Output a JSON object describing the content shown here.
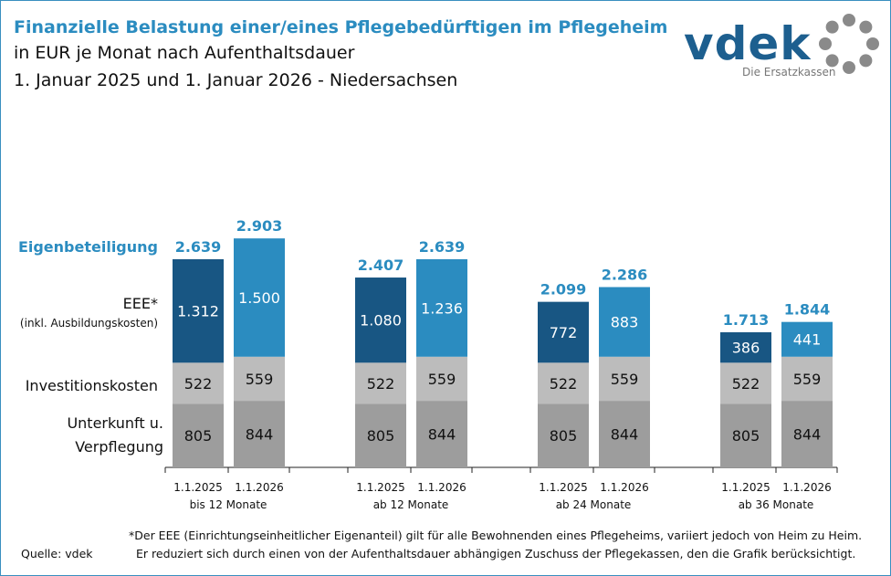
{
  "title": "Finanzielle Belastung einer/eines Pflegebedürftigen im Pflegeheim",
  "subtitle1": "in EUR je Monat nach Aufenthaltsdauer",
  "subtitle2": "1. Januar 2025 und 1. Januar 2026 - Niedersachsen",
  "logo": {
    "text": "vdek",
    "tagline": "Die Ersatzkassen"
  },
  "colors": {
    "title": "#2b8cc0",
    "eee_2025": "#185683",
    "eee_2026": "#2b8cc0",
    "invest": "#bcbcbc",
    "unterkunft": "#9d9d9d"
  },
  "chart_data": {
    "type": "bar",
    "stacked": true,
    "groups": [
      "bis 12 Monate",
      "ab 12 Monate",
      "ab 24 Monate",
      "ab 36 Monate"
    ],
    "dates": [
      "1.1.2025",
      "1.1.2026"
    ],
    "series": [
      {
        "name": "Unterkunft u. Verpflegung",
        "values": [
          [
            805,
            844
          ],
          [
            805,
            844
          ],
          [
            805,
            844
          ],
          [
            805,
            844
          ]
        ]
      },
      {
        "name": "Investitionskosten",
        "values": [
          [
            522,
            559
          ],
          [
            522,
            559
          ],
          [
            522,
            559
          ],
          [
            522,
            559
          ]
        ]
      },
      {
        "name": "EEE*",
        "note": "(inkl. Ausbildungskosten)",
        "values": [
          [
            1312,
            1500
          ],
          [
            1080,
            1236
          ],
          [
            772,
            883
          ],
          [
            386,
            441
          ]
        ]
      }
    ],
    "totals_label": "Eigenbeteiligung",
    "totals": [
      [
        2639,
        2903
      ],
      [
        2407,
        2639
      ],
      [
        2099,
        2286
      ],
      [
        1713,
        1844
      ]
    ]
  },
  "footnote1": "*Der EEE (Einrichtungseinheitlicher Eigenanteil) gilt für alle Bewohnenden eines Pflegeheims, variiert jedoch von Heim zu Heim.",
  "footnote2": "Er reduziert sich durch einen von der Aufenthaltsdauer abhängigen Zuschuss der Pflegekassen, den die Grafik berücksichtigt.",
  "source": "Quelle: vdek"
}
